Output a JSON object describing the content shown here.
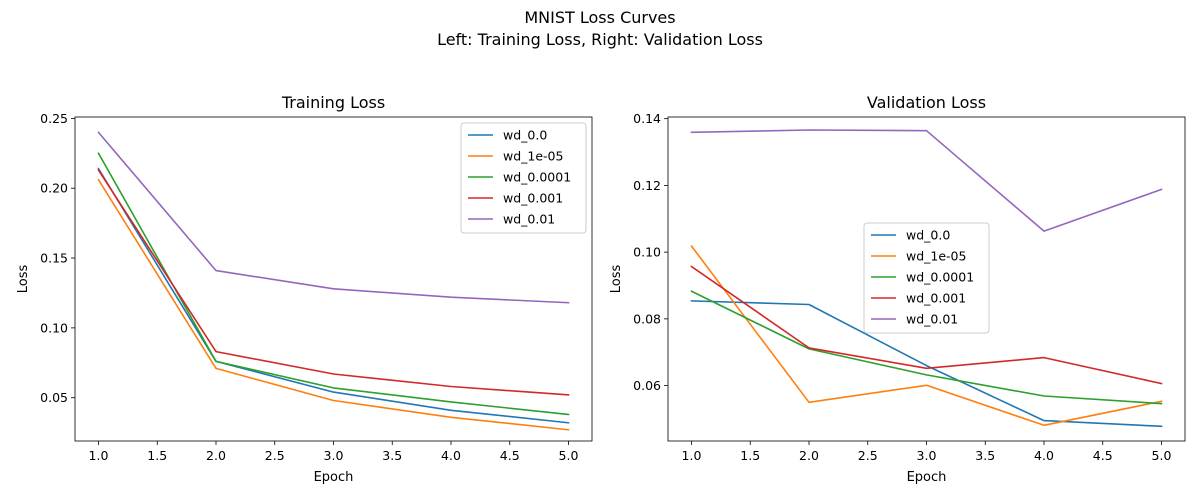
{
  "figure": {
    "title_line1": "MNIST Loss Curves",
    "title_line2": "Left: Training Loss, Right: Validation Loss"
  },
  "chart_data": [
    {
      "type": "line",
      "title": "Training Loss",
      "xlabel": "Epoch",
      "ylabel": "Loss",
      "xlim": [
        0.8,
        5.2
      ],
      "ylim": [
        0.019,
        0.251
      ],
      "xticks": [
        "1.0",
        "1.5",
        "2.0",
        "2.5",
        "3.0",
        "3.5",
        "4.0",
        "4.5",
        "5.0"
      ],
      "yticks": [
        "0.05",
        "0.10",
        "0.15",
        "0.20",
        "0.25"
      ],
      "legend_position": "top-right",
      "x": [
        1,
        2,
        3,
        4,
        5
      ],
      "series": [
        {
          "name": "wd_0.0",
          "color": "#1f77b4",
          "values": [
            0.214,
            0.076,
            0.054,
            0.041,
            0.032
          ]
        },
        {
          "name": "wd_1e-05",
          "color": "#ff7f0e",
          "values": [
            0.206,
            0.071,
            0.048,
            0.036,
            0.027
          ]
        },
        {
          "name": "wd_0.0001",
          "color": "#2ca02c",
          "values": [
            0.225,
            0.076,
            0.057,
            0.047,
            0.038
          ]
        },
        {
          "name": "wd_0.001",
          "color": "#d62728",
          "values": [
            0.213,
            0.083,
            0.067,
            0.058,
            0.052
          ]
        },
        {
          "name": "wd_0.01",
          "color": "#9467bd",
          "values": [
            0.24,
            0.141,
            0.128,
            0.122,
            0.118
          ]
        }
      ]
    },
    {
      "type": "line",
      "title": "Validation Loss",
      "xlabel": "Epoch",
      "ylabel": "Loss",
      "xlim": [
        0.8,
        5.2
      ],
      "ylim": [
        0.0434,
        0.1405
      ],
      "xticks": [
        "1.0",
        "1.5",
        "2.0",
        "2.5",
        "3.0",
        "3.5",
        "4.0",
        "4.5",
        "5.0"
      ],
      "yticks": [
        "0.06",
        "0.08",
        "0.10",
        "0.12",
        "0.14"
      ],
      "legend_position": "center",
      "x": [
        1,
        2,
        3,
        4,
        5
      ],
      "series": [
        {
          "name": "wd_0.0",
          "color": "#1f77b4",
          "values": [
            0.0854,
            0.0843,
            0.066,
            0.0495,
            0.0478
          ]
        },
        {
          "name": "wd_1e-05",
          "color": "#ff7f0e",
          "values": [
            0.1018,
            0.055,
            0.0601,
            0.0481,
            0.0553
          ]
        },
        {
          "name": "wd_0.0001",
          "color": "#2ca02c",
          "values": [
            0.0883,
            0.071,
            0.0632,
            0.0569,
            0.0546
          ]
        },
        {
          "name": "wd_0.001",
          "color": "#d62728",
          "values": [
            0.0957,
            0.0713,
            0.0652,
            0.0684,
            0.0606
          ]
        },
        {
          "name": "wd_0.01",
          "color": "#9467bd",
          "values": [
            0.1359,
            0.1366,
            0.1364,
            0.1063,
            0.1188
          ]
        }
      ]
    }
  ]
}
